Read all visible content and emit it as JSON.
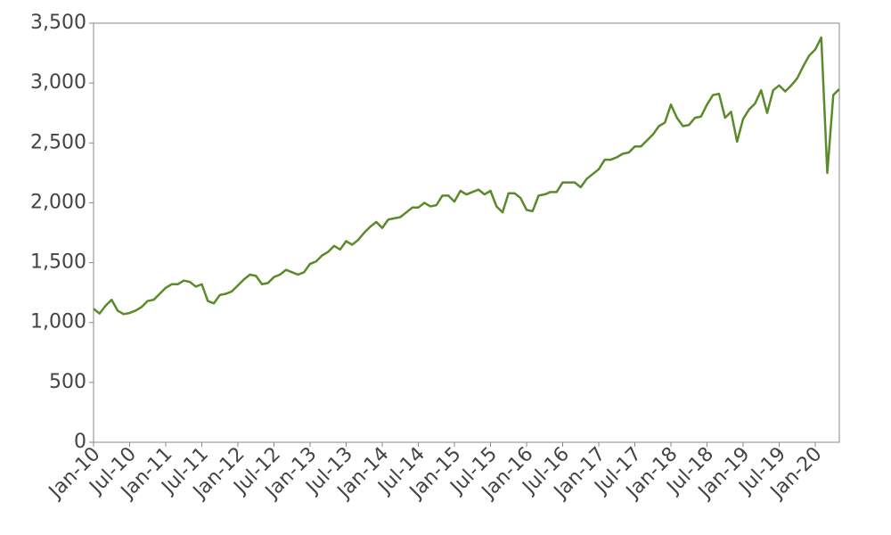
{
  "chart_data": {
    "type": "line",
    "x": [
      "2010-01",
      "2010-02",
      "2010-03",
      "2010-04",
      "2010-05",
      "2010-06",
      "2010-07",
      "2010-08",
      "2010-09",
      "2010-10",
      "2010-11",
      "2010-12",
      "2011-01",
      "2011-02",
      "2011-03",
      "2011-04",
      "2011-05",
      "2011-06",
      "2011-07",
      "2011-08",
      "2011-09",
      "2011-10",
      "2011-11",
      "2011-12",
      "2012-01",
      "2012-02",
      "2012-03",
      "2012-04",
      "2012-05",
      "2012-06",
      "2012-07",
      "2012-08",
      "2012-09",
      "2012-10",
      "2012-11",
      "2012-12",
      "2013-01",
      "2013-02",
      "2013-03",
      "2013-04",
      "2013-05",
      "2013-06",
      "2013-07",
      "2013-08",
      "2013-09",
      "2013-10",
      "2013-11",
      "2013-12",
      "2014-01",
      "2014-02",
      "2014-03",
      "2014-04",
      "2014-05",
      "2014-06",
      "2014-07",
      "2014-08",
      "2014-09",
      "2014-10",
      "2014-11",
      "2014-12",
      "2015-01",
      "2015-02",
      "2015-03",
      "2015-04",
      "2015-05",
      "2015-06",
      "2015-07",
      "2015-08",
      "2015-09",
      "2015-10",
      "2015-11",
      "2015-12",
      "2016-01",
      "2016-02",
      "2016-03",
      "2016-04",
      "2016-05",
      "2016-06",
      "2016-07",
      "2016-08",
      "2016-09",
      "2016-10",
      "2016-11",
      "2016-12",
      "2017-01",
      "2017-02",
      "2017-03",
      "2017-04",
      "2017-05",
      "2017-06",
      "2017-07",
      "2017-08",
      "2017-09",
      "2017-10",
      "2017-11",
      "2017-12",
      "2018-01",
      "2018-02",
      "2018-03",
      "2018-04",
      "2018-05",
      "2018-06",
      "2018-07",
      "2018-08",
      "2018-09",
      "2018-10",
      "2018-11",
      "2018-12",
      "2019-01",
      "2019-02",
      "2019-03",
      "2019-04",
      "2019-05",
      "2019-06",
      "2019-07",
      "2019-08",
      "2019-09",
      "2019-10",
      "2019-11",
      "2019-12",
      "2020-01",
      "2020-02",
      "2020-03",
      "2020-04",
      "2020-05"
    ],
    "series": [
      {
        "color": "#5a8a2a",
        "values": [
          1115,
          1075,
          1140,
          1190,
          1100,
          1070,
          1080,
          1100,
          1130,
          1180,
          1190,
          1240,
          1290,
          1320,
          1320,
          1350,
          1340,
          1300,
          1320,
          1180,
          1160,
          1230,
          1240,
          1260,
          1310,
          1360,
          1400,
          1390,
          1320,
          1330,
          1380,
          1400,
          1440,
          1420,
          1400,
          1420,
          1490,
          1510,
          1560,
          1590,
          1640,
          1610,
          1680,
          1650,
          1690,
          1750,
          1800,
          1840,
          1790,
          1860,
          1870,
          1880,
          1920,
          1960,
          1960,
          2000,
          1970,
          1980,
          2060,
          2060,
          2010,
          2100,
          2070,
          2090,
          2110,
          2070,
          2100,
          1970,
          1920,
          2080,
          2080,
          2040,
          1940,
          1930,
          2060,
          2070,
          2090,
          2090,
          2170,
          2170,
          2170,
          2130,
          2200,
          2240,
          2280,
          2360,
          2360,
          2380,
          2410,
          2420,
          2470,
          2470,
          2520,
          2570,
          2640,
          2670,
          2820,
          2710,
          2640,
          2650,
          2710,
          2720,
          2820,
          2900,
          2910,
          2710,
          2760,
          2510,
          2700,
          2780,
          2830,
          2940,
          2750,
          2940,
          2980,
          2930,
          2980,
          3040,
          3140,
          3230,
          3280,
          3380,
          2250,
          2900,
          2950
        ]
      }
    ],
    "xlim": [
      "2010-01",
      "2020-05"
    ],
    "xticks": [
      {
        "value": "2010-01",
        "label": "Jan-10"
      },
      {
        "value": "2010-07",
        "label": "Jul-10"
      },
      {
        "value": "2011-01",
        "label": "Jan-11"
      },
      {
        "value": "2011-07",
        "label": "Jul-11"
      },
      {
        "value": "2012-01",
        "label": "Jan-12"
      },
      {
        "value": "2012-07",
        "label": "Jul-12"
      },
      {
        "value": "2013-01",
        "label": "Jan-13"
      },
      {
        "value": "2013-07",
        "label": "Jul-13"
      },
      {
        "value": "2014-01",
        "label": "Jan-14"
      },
      {
        "value": "2014-07",
        "label": "Jul-14"
      },
      {
        "value": "2015-01",
        "label": "Jan-15"
      },
      {
        "value": "2015-07",
        "label": "Jul-15"
      },
      {
        "value": "2016-01",
        "label": "Jan-16"
      },
      {
        "value": "2016-07",
        "label": "Jul-16"
      },
      {
        "value": "2017-01",
        "label": "Jan-17"
      },
      {
        "value": "2017-07",
        "label": "Jul-17"
      },
      {
        "value": "2018-01",
        "label": "Jan-18"
      },
      {
        "value": "2018-07",
        "label": "Jul-18"
      },
      {
        "value": "2019-01",
        "label": "Jan-19"
      },
      {
        "value": "2019-07",
        "label": "Jul-19"
      },
      {
        "value": "2020-01",
        "label": "Jan-20"
      }
    ],
    "ylim": [
      0,
      3500
    ],
    "yticks": [
      0,
      500,
      {
        "value": 1000,
        "label": "1,000"
      },
      {
        "value": 1500,
        "label": "1,500"
      },
      {
        "value": 2000,
        "label": "2,000"
      },
      {
        "value": 2500,
        "label": "2,500"
      },
      {
        "value": 3000,
        "label": "3,000"
      },
      {
        "value": 3500,
        "label": "3,500"
      }
    ],
    "grid": false
  }
}
